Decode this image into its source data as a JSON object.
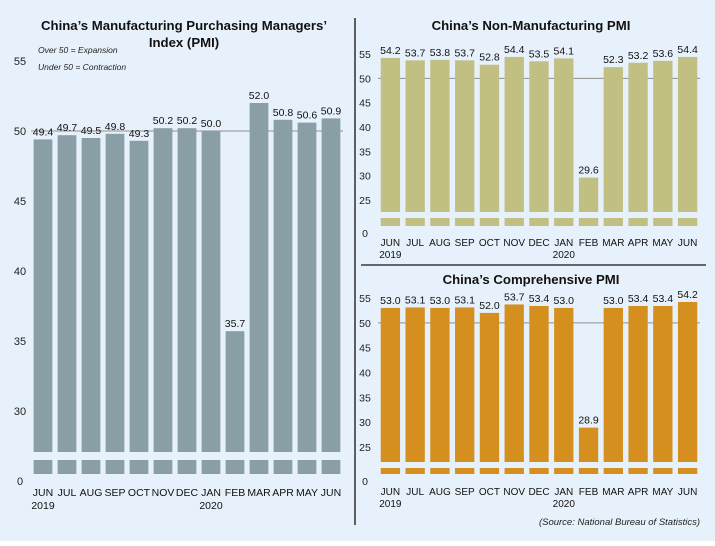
{
  "colors": {
    "background": "#e7f1fb",
    "divider": "#3a3a3a",
    "manufacturing_bar": "#8a9ea6",
    "non_manufacturing_bar": "#c2bf83",
    "comprehensive_bar": "#d48f1f",
    "reference_line": "#8f8f8f"
  },
  "source": "(Source: National Bureau of Statistics)",
  "chart_data": [
    {
      "id": "manufacturing",
      "type": "bar",
      "title": "China’s Manufacturing Purchasing Managers’ Index (PMI)",
      "title_lines": [
        "China’s Manufacturing Purchasing Managers’",
        "Index (PMI)"
      ],
      "notes": [
        "Over 50 = Expansion",
        "Under 50 = Contraction"
      ],
      "categories": [
        "JUN",
        "JUL",
        "AUG",
        "SEP",
        "OCT",
        "NOV",
        "DEC",
        "JAN",
        "FEB",
        "MAR",
        "APR",
        "MAY",
        "JUN"
      ],
      "year_labels": [
        {
          "index": 0,
          "label": "2019"
        },
        {
          "index": 7,
          "label": "2020"
        }
      ],
      "values": [
        49.4,
        49.7,
        49.5,
        49.8,
        49.3,
        50.2,
        50.2,
        50.0,
        35.7,
        52.0,
        50.8,
        50.6,
        50.9
      ],
      "value_labels": [
        "49.4",
        "49.7",
        "49.5",
        "49.8",
        "49.3",
        "50.2",
        "50.2",
        "50.0",
        "35.7",
        "52.0",
        "50.8",
        "50.6",
        "50.9"
      ],
      "y_ticks": [
        "0",
        "30",
        "35",
        "40",
        "45",
        "50",
        "55"
      ],
      "axis_break": true,
      "reference_line": 50,
      "ylim": [
        0,
        55
      ],
      "xlabel": "",
      "ylabel": ""
    },
    {
      "id": "non_manufacturing",
      "type": "bar",
      "title": "China’s Non-Manufacturing PMI",
      "title_lines": [
        "China’s Non-Manufacturing PMI"
      ],
      "categories": [
        "JUN",
        "JUL",
        "AUG",
        "SEP",
        "OCT",
        "NOV",
        "DEC",
        "JAN",
        "FEB",
        "MAR",
        "APR",
        "MAY",
        "JUN"
      ],
      "year_labels": [
        {
          "index": 0,
          "label": "2019"
        },
        {
          "index": 7,
          "label": "2020"
        }
      ],
      "values": [
        54.2,
        53.7,
        53.8,
        53.7,
        52.8,
        54.4,
        53.5,
        54.1,
        29.6,
        52.3,
        53.2,
        53.6,
        54.4
      ],
      "value_labels": [
        "54.2",
        "53.7",
        "53.8",
        "53.7",
        "52.8",
        "54.4",
        "53.5",
        "54.1",
        "29.6",
        "52.3",
        "53.2",
        "53.6",
        "54.4"
      ],
      "y_ticks": [
        "0",
        "25",
        "30",
        "35",
        "40",
        "45",
        "50",
        "55"
      ],
      "axis_break": true,
      "reference_line": 50,
      "ylim": [
        0,
        55
      ],
      "xlabel": "",
      "ylabel": ""
    },
    {
      "id": "comprehensive",
      "type": "bar",
      "title": "China’s Comprehensive PMI",
      "title_lines": [
        "China’s Comprehensive PMI"
      ],
      "categories": [
        "JUN",
        "JUL",
        "AUG",
        "SEP",
        "OCT",
        "NOV",
        "DEC",
        "JAN",
        "FEB",
        "MAR",
        "APR",
        "MAY",
        "JUN"
      ],
      "year_labels": [
        {
          "index": 0,
          "label": "2019"
        },
        {
          "index": 7,
          "label": "2020"
        }
      ],
      "values": [
        53.0,
        53.1,
        53.0,
        53.1,
        52.0,
        53.7,
        53.4,
        53.0,
        28.9,
        53.0,
        53.4,
        53.4,
        54.2
      ],
      "value_labels": [
        "53.0",
        "53.1",
        "53.0",
        "53.1",
        "52.0",
        "53.7",
        "53.4",
        "53.0",
        "28.9",
        "53.0",
        "53.4",
        "53.4",
        "54.2"
      ],
      "y_ticks": [
        "0",
        "25",
        "30",
        "35",
        "40",
        "45",
        "50",
        "55"
      ],
      "axis_break": true,
      "reference_line": 50,
      "ylim": [
        0,
        55
      ],
      "xlabel": "",
      "ylabel": ""
    }
  ]
}
